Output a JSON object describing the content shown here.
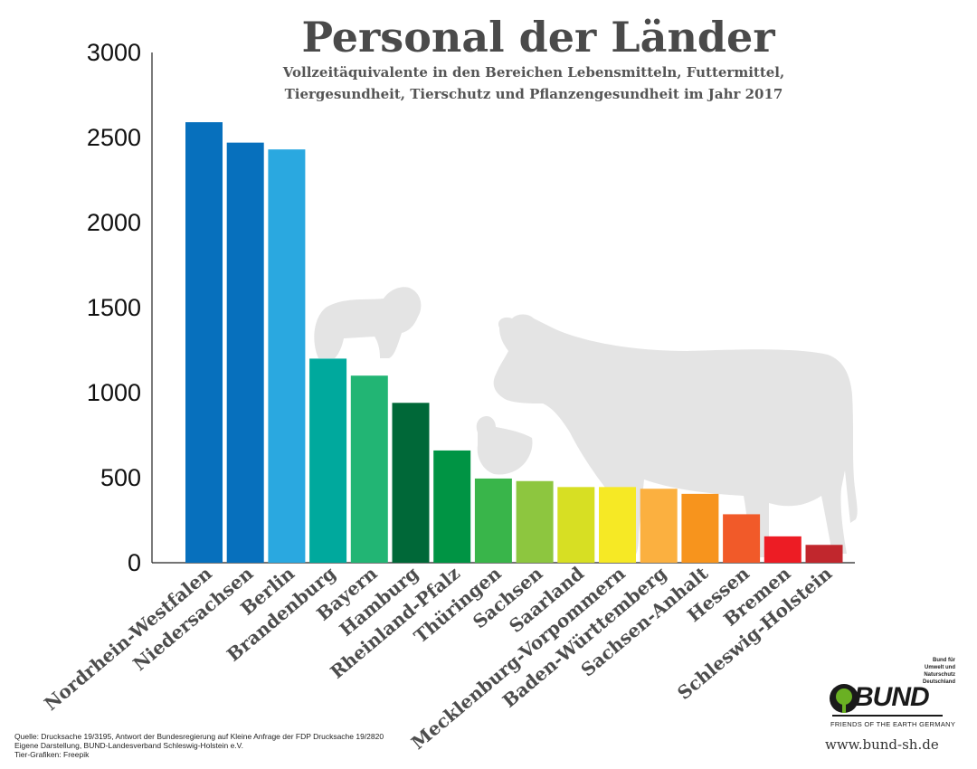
{
  "title": "Personal der Länder",
  "subtitle_lines": [
    "Vollzeitäquivalente in den Bereichen Lebensmitteln, Futtermittel,",
    "Tiergesundheit, Tierschutz und Pflanzengesundheit im Jahr 2017"
  ],
  "chart_data": {
    "type": "bar",
    "title": "Personal der Länder",
    "xlabel": "",
    "ylabel": "",
    "ylim": [
      0,
      3000
    ],
    "yticks": [
      0,
      500,
      1000,
      1500,
      2000,
      2500,
      3000
    ],
    "grid": false,
    "categories": [
      "Nordrhein-Westfalen",
      "Niedersachsen",
      "Berlin",
      "Brandenburg",
      "Bayern",
      "Hamburg",
      "Rheinland-Pfalz",
      "Thüringen",
      "Sachsen",
      "Saarland",
      "Mecklenburg-Vorpommern",
      "Baden-Württemberg",
      "Sachsen-Anhalt",
      "Hessen",
      "Bremen",
      "Schleswig-Holstein"
    ],
    "values": [
      2590,
      2470,
      2430,
      1200,
      1100,
      940,
      660,
      495,
      480,
      445,
      445,
      435,
      405,
      285,
      155,
      105
    ],
    "colors": [
      "#0770bd",
      "#0770bd",
      "#2aa8e0",
      "#00a99d",
      "#22b574",
      "#006838",
      "#009444",
      "#39b54a",
      "#8dc63f",
      "#d7df23",
      "#f6e925",
      "#fbb040",
      "#f7941d",
      "#f15a29",
      "#ed1c24",
      "#c1272d"
    ]
  },
  "source_lines": [
    "Quelle: Drucksache 19/3195, Antwort der Bundesregierung auf Kleine Anfrage der FDP Drucksache 19/2820",
    "Eigene Darstellung, BUND-Landesverband Schleswig-Holstein e.V.",
    "Tier-Grafiken: Freepik"
  ],
  "logo": {
    "tagline": [
      "Bund für",
      "Umwelt und",
      "Naturschutz",
      "Deutschland"
    ],
    "word": "BUND",
    "sub": "FRIENDS OF THE EARTH GERMANY"
  },
  "url": "www.bund-sh.de",
  "illustrations": [
    "sheep-icon",
    "cow-icon",
    "chicken-icon"
  ]
}
